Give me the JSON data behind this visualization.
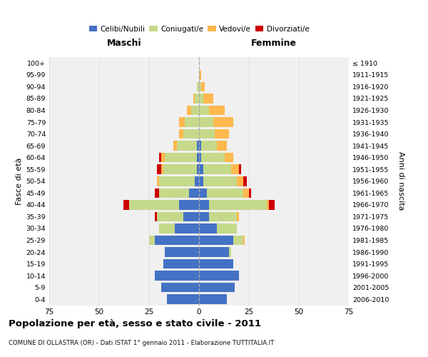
{
  "age_groups": [
    "0-4",
    "5-9",
    "10-14",
    "15-19",
    "20-24",
    "25-29",
    "30-34",
    "35-39",
    "40-44",
    "45-49",
    "50-54",
    "55-59",
    "60-64",
    "65-69",
    "70-74",
    "75-79",
    "80-84",
    "85-89",
    "90-94",
    "95-99",
    "100+"
  ],
  "birth_years": [
    "2006-2010",
    "2001-2005",
    "1996-2000",
    "1991-1995",
    "1986-1990",
    "1981-1985",
    "1976-1980",
    "1971-1975",
    "1966-1970",
    "1961-1965",
    "1956-1960",
    "1951-1955",
    "1946-1950",
    "1941-1945",
    "1936-1940",
    "1931-1935",
    "1926-1930",
    "1921-1925",
    "1916-1920",
    "1911-1915",
    "≤ 1910"
  ],
  "male": {
    "celibi": [
      16,
      19,
      22,
      18,
      17,
      22,
      12,
      8,
      10,
      5,
      2,
      1,
      1,
      1,
      0,
      0,
      0,
      0,
      0,
      0,
      0
    ],
    "coniugati": [
      0,
      0,
      0,
      0,
      0,
      3,
      8,
      13,
      25,
      15,
      18,
      17,
      16,
      10,
      8,
      7,
      4,
      2,
      1,
      0,
      0
    ],
    "vedovi": [
      0,
      0,
      0,
      0,
      0,
      0,
      0,
      0,
      0,
      0,
      1,
      1,
      2,
      2,
      2,
      3,
      2,
      1,
      0,
      0,
      0
    ],
    "divorziati": [
      0,
      0,
      0,
      0,
      0,
      0,
      0,
      1,
      3,
      2,
      0,
      2,
      1,
      0,
      0,
      0,
      0,
      0,
      0,
      0,
      0
    ]
  },
  "female": {
    "nubili": [
      14,
      18,
      20,
      17,
      15,
      17,
      9,
      5,
      5,
      4,
      2,
      2,
      1,
      1,
      0,
      0,
      0,
      0,
      0,
      0,
      0
    ],
    "coniugate": [
      0,
      0,
      0,
      0,
      1,
      5,
      10,
      14,
      29,
      18,
      17,
      14,
      12,
      8,
      8,
      7,
      5,
      2,
      1,
      0,
      0
    ],
    "vedove": [
      0,
      0,
      0,
      0,
      0,
      1,
      0,
      1,
      1,
      3,
      3,
      4,
      4,
      5,
      7,
      10,
      8,
      5,
      2,
      1,
      0
    ],
    "divorziate": [
      0,
      0,
      0,
      0,
      0,
      0,
      0,
      0,
      3,
      1,
      2,
      1,
      0,
      0,
      0,
      0,
      0,
      0,
      0,
      0,
      0
    ]
  },
  "colors": {
    "celibi_nubili": "#4472C4",
    "coniugati": "#C5D98A",
    "vedovi": "#FFB84D",
    "divorziati": "#CC0000"
  },
  "xlim": 75,
  "title": "Popolazione per età, sesso e stato civile - 2011",
  "subtitle": "COMUNE DI OLLASTRA (OR) - Dati ISTAT 1° gennaio 2011 - Elaborazione TUTTITALIA.IT",
  "ylabel_left": "Fasce di età",
  "ylabel_right": "Anni di nascita",
  "xlabel_male": "Maschi",
  "xlabel_female": "Femmine",
  "bg_color": "#f0f0f0",
  "grid_color": "#cccccc"
}
